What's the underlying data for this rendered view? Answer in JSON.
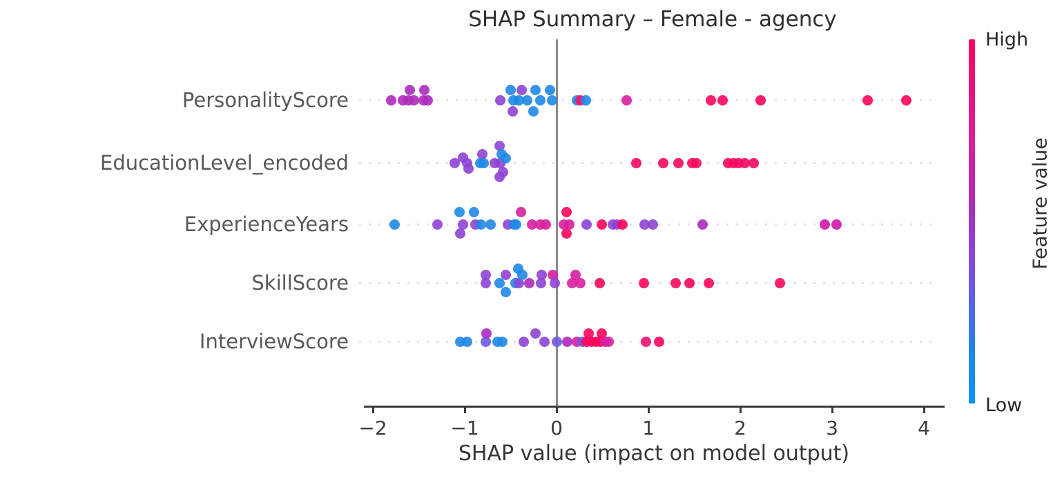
{
  "page": {
    "background": "#ffffff"
  },
  "chart_data": {
    "type": "scatter",
    "variant": "shap-summary-dot-plot",
    "title": "SHAP Summary – Female - agency",
    "xlabel": "SHAP value (impact on model output)",
    "xticks": [
      -2,
      -1,
      0,
      1,
      2,
      3,
      4
    ],
    "xtick_labels": [
      "−2",
      "−1",
      "0",
      "1",
      "2",
      "3",
      "4"
    ],
    "xlim": [
      -2.1,
      4.25
    ],
    "grid": "dotted-horizontal-per-feature-row",
    "legend_position": "right-colorbar",
    "zero_line_color": "#8a8a8a",
    "axis_color": "#3a3a3a",
    "point_colors_meaning": "feature value (blue=low, purple=mid, crimson=high)",
    "features": [
      {
        "name": "PersonalityScore",
        "points": [
          [
            -1.8,
            "#ad2bbc",
            0
          ],
          [
            -1.67,
            "#ad2bbc",
            0
          ],
          [
            -1.61,
            "#ad2bbc",
            0
          ],
          [
            -1.6,
            "#ad2bbc",
            -15
          ],
          [
            -1.55,
            "#ad2bbc",
            0
          ],
          [
            -1.45,
            "#ad2bbc",
            0
          ],
          [
            -1.44,
            "#ad2bbc",
            -15
          ],
          [
            -1.4,
            "#ad2bbc",
            0
          ],
          [
            -0.61,
            "#8e44d4",
            0
          ],
          [
            -0.5,
            "#1e88e5",
            -15
          ],
          [
            -0.48,
            "#8e44d4",
            16
          ],
          [
            -0.47,
            "#1e88e5",
            0
          ],
          [
            -0.41,
            "#1e88e5",
            0
          ],
          [
            -0.38,
            "#8e44d4",
            -15
          ],
          [
            -0.32,
            "#1e88e5",
            0
          ],
          [
            -0.25,
            "#1e88e5",
            16
          ],
          [
            -0.23,
            "#1e88e5",
            -15
          ],
          [
            -0.18,
            "#1e88e5",
            0
          ],
          [
            -0.07,
            "#1e88e5",
            -15
          ],
          [
            -0.05,
            "#1e88e5",
            0
          ],
          [
            0.22,
            "#1e88e5",
            0
          ],
          [
            0.26,
            "#f2126e",
            0
          ],
          [
            0.32,
            "#1e88e5",
            0
          ],
          [
            0.76,
            "#d81f9e",
            0
          ],
          [
            1.68,
            "#fa055c",
            0
          ],
          [
            1.81,
            "#fa055c",
            0
          ],
          [
            2.22,
            "#fa055c",
            0
          ],
          [
            3.39,
            "#fa055c",
            0
          ],
          [
            3.81,
            "#fa055c",
            0
          ]
        ]
      },
      {
        "name": "EducationLevel_encoded",
        "points": [
          [
            -1.11,
            "#8e44d4",
            0
          ],
          [
            -1.02,
            "#8e44d4",
            -8
          ],
          [
            -0.97,
            "#8e44d4",
            0
          ],
          [
            -0.96,
            "#8e44d4",
            8
          ],
          [
            -0.83,
            "#1e88e5",
            0
          ],
          [
            -0.81,
            "#8e44d4",
            -13
          ],
          [
            -0.79,
            "#1e88e5",
            0
          ],
          [
            -0.67,
            "#8e44d4",
            0
          ],
          [
            -0.62,
            "#8e44d4",
            -25
          ],
          [
            -0.62,
            "#8e44d4",
            20
          ],
          [
            -0.61,
            "#8e44d4",
            0
          ],
          [
            -0.6,
            "#1e88e5",
            -13
          ],
          [
            -0.58,
            "#8e44d4",
            13
          ],
          [
            -0.55,
            "#1e88e5",
            -7
          ],
          [
            0.87,
            "#f1085f",
            0
          ],
          [
            1.16,
            "#f1085f",
            0
          ],
          [
            1.33,
            "#f1085f",
            0
          ],
          [
            1.48,
            "#fa055c",
            0
          ],
          [
            1.52,
            "#f1085f",
            0
          ],
          [
            1.87,
            "#f1085f",
            0
          ],
          [
            1.93,
            "#fa055c",
            0
          ],
          [
            1.98,
            "#f1085f",
            0
          ],
          [
            2.05,
            "#f1085f",
            0
          ],
          [
            2.15,
            "#f1085f",
            0
          ]
        ]
      },
      {
        "name": "ExperienceYears",
        "points": [
          [
            -1.76,
            "#1e88e5",
            0
          ],
          [
            -1.3,
            "#8e44d4",
            0
          ],
          [
            -1.06,
            "#1e88e5",
            -18
          ],
          [
            -1.05,
            "#8e44d4",
            13
          ],
          [
            -1.02,
            "#8e44d4",
            0
          ],
          [
            -0.9,
            "#1e88e5",
            -18
          ],
          [
            -0.88,
            "#8e44d4",
            0
          ],
          [
            -0.82,
            "#1e88e5",
            0
          ],
          [
            -0.72,
            "#1e88e5",
            0
          ],
          [
            -0.53,
            "#8e44d4",
            0
          ],
          [
            -0.46,
            "#1e88e5",
            0
          ],
          [
            -0.44,
            "#1e88e5",
            0
          ],
          [
            -0.39,
            "#d81f9e",
            -18
          ],
          [
            -0.27,
            "#d81f9e",
            0
          ],
          [
            -0.18,
            "#d81f9e",
            0
          ],
          [
            -0.12,
            "#d81f9e",
            0
          ],
          [
            0.08,
            "#d81f9e",
            0
          ],
          [
            0.11,
            "#fa055c",
            -18
          ],
          [
            0.11,
            "#fa055c",
            13
          ],
          [
            0.14,
            "#d81f9e",
            0
          ],
          [
            0.33,
            "#8e44d4",
            0
          ],
          [
            0.49,
            "#fa055c",
            0
          ],
          [
            0.61,
            "#8e44d4",
            0
          ],
          [
            0.66,
            "#8e44d4",
            0
          ],
          [
            0.72,
            "#fa055c",
            0
          ],
          [
            0.96,
            "#8e44d4",
            0
          ],
          [
            1.05,
            "#8e44d4",
            0
          ],
          [
            1.59,
            "#ad2bbc",
            0
          ],
          [
            2.92,
            "#cf17a9",
            0
          ],
          [
            3.05,
            "#cf17a9",
            0
          ]
        ]
      },
      {
        "name": "SkillScore",
        "points": [
          [
            -0.77,
            "#8e44d4",
            -12
          ],
          [
            -0.77,
            "#8e44d4",
            0
          ],
          [
            -0.62,
            "#1e88e5",
            0
          ],
          [
            -0.55,
            "#8e44d4",
            -12
          ],
          [
            -0.55,
            "#1e88e5",
            13
          ],
          [
            -0.45,
            "#1e88e5",
            0
          ],
          [
            -0.42,
            "#1e88e5",
            -21
          ],
          [
            -0.41,
            "#8e44d4",
            0
          ],
          [
            -0.37,
            "#1e88e5",
            -12
          ],
          [
            -0.3,
            "#ad2bbc",
            0
          ],
          [
            -0.17,
            "#8e44d4",
            0
          ],
          [
            -0.16,
            "#8e44d4",
            -12
          ],
          [
            -0.04,
            "#d81f9e",
            -12
          ],
          [
            -0.02,
            "#8e44d4",
            0
          ],
          [
            0.17,
            "#d81f9e",
            0
          ],
          [
            0.21,
            "#d81f9e",
            -12
          ],
          [
            0.26,
            "#d81f9e",
            0
          ],
          [
            0.47,
            "#f1085f",
            0
          ],
          [
            0.95,
            "#fa055c",
            0
          ],
          [
            1.3,
            "#fa055c",
            0
          ],
          [
            1.45,
            "#fa055c",
            0
          ],
          [
            1.66,
            "#fa055c",
            0
          ],
          [
            2.43,
            "#fa055c",
            0
          ]
        ]
      },
      {
        "name": "InterviewScore",
        "points": [
          [
            -1.05,
            "#1e88e5",
            0
          ],
          [
            -0.97,
            "#1e88e5",
            0
          ],
          [
            -0.77,
            "#6a5ae0",
            0
          ],
          [
            -0.76,
            "#ad2bbc",
            -12
          ],
          [
            -0.64,
            "#1e88e5",
            0
          ],
          [
            -0.59,
            "#1e88e5",
            0
          ],
          [
            -0.36,
            "#8e44d4",
            0
          ],
          [
            -0.23,
            "#8e44d4",
            -12
          ],
          [
            -0.13,
            "#8e44d4",
            0
          ],
          [
            0.0,
            "#6a5ae0",
            0
          ],
          [
            0.12,
            "#ad2bbc",
            0
          ],
          [
            0.22,
            "#d81f9e",
            0
          ],
          [
            0.28,
            "#6a5ae0",
            0
          ],
          [
            0.33,
            "#fa055c",
            0
          ],
          [
            0.35,
            "#fa055c",
            -12
          ],
          [
            0.38,
            "#fa055c",
            0
          ],
          [
            0.43,
            "#fa055c",
            0
          ],
          [
            0.48,
            "#fa055c",
            0
          ],
          [
            0.49,
            "#fa055c",
            -12
          ],
          [
            0.53,
            "#d81f9e",
            0
          ],
          [
            0.57,
            "#d81f9e",
            0
          ],
          [
            0.97,
            "#ea0f76",
            0
          ],
          [
            1.12,
            "#fa055c",
            0
          ]
        ]
      }
    ],
    "colorbar": {
      "label": "Feature value",
      "high_label": "High",
      "low_label": "Low",
      "stops": [
        {
          "pos": 0.0,
          "color": "#fa0361"
        },
        {
          "pos": 0.28,
          "color": "#d81f9e"
        },
        {
          "pos": 0.45,
          "color": "#ad2bbc"
        },
        {
          "pos": 0.58,
          "color": "#8e44d4"
        },
        {
          "pos": 0.68,
          "color": "#6a5ae0"
        },
        {
          "pos": 0.86,
          "color": "#1e88e5"
        },
        {
          "pos": 1.0,
          "color": "#0b93f5"
        }
      ]
    }
  }
}
